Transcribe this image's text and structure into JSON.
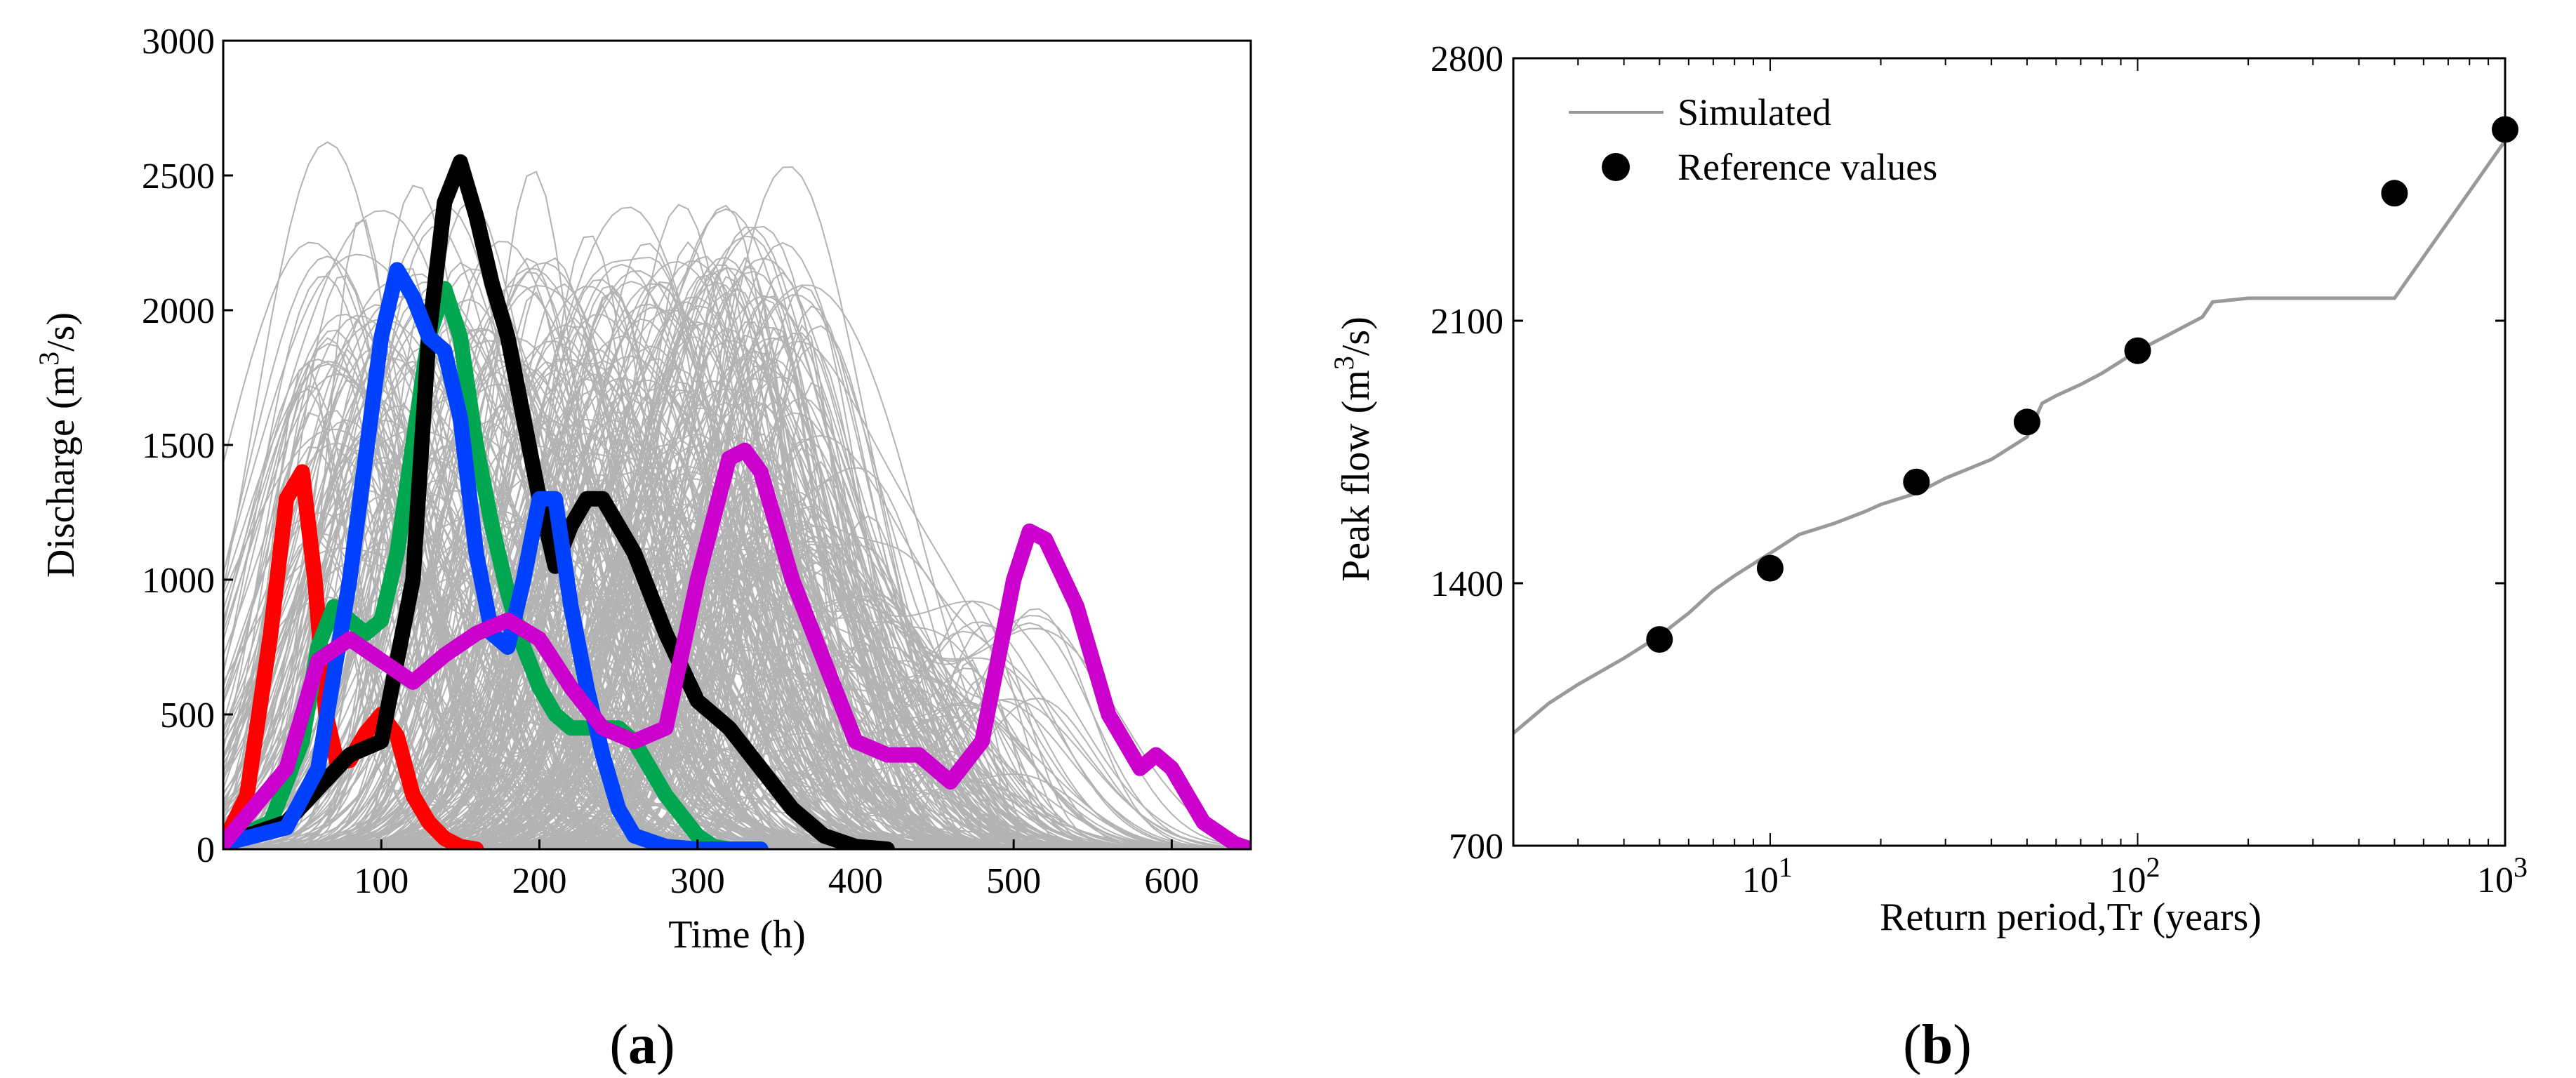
{
  "chart_data": [
    {
      "type": "line",
      "panel_label": "a",
      "xlabel": "Time (h)",
      "ylabel_parts": [
        "Discharge (m",
        "3",
        "/s)"
      ],
      "xlim": [
        0,
        650
      ],
      "ylim": [
        0,
        3000
      ],
      "xticks": [
        100,
        200,
        300,
        400,
        500,
        600
      ],
      "yticks": [
        0,
        500,
        1000,
        1500,
        2000,
        2500,
        3000
      ],
      "background_ensemble": {
        "color": "#b3b3b3",
        "description_shown": "many synthetic hydrographs, peaks mostly 1400-2200 m3/s between 50 and 350 h"
      },
      "series": [
        {
          "color": "#ff0000",
          "x": [
            0,
            15,
            30,
            40,
            50,
            58,
            65,
            72,
            80,
            90,
            100,
            110,
            120,
            130,
            140,
            150,
            160
          ],
          "y": [
            20,
            200,
            800,
            1300,
            1400,
            1000,
            500,
            320,
            330,
            430,
            500,
            420,
            200,
            100,
            40,
            10,
            0
          ]
        },
        {
          "color": "#00a650",
          "x": [
            0,
            30,
            50,
            60,
            70,
            80,
            90,
            100,
            110,
            120,
            130,
            140,
            150,
            160,
            170,
            180,
            190,
            200,
            210,
            220,
            230,
            250,
            260,
            270,
            280,
            300,
            310,
            320
          ],
          "y": [
            20,
            100,
            400,
            750,
            900,
            850,
            800,
            850,
            1100,
            1500,
            1900,
            2080,
            1900,
            1500,
            1200,
            950,
            750,
            600,
            500,
            450,
            450,
            450,
            400,
            300,
            200,
            50,
            10,
            0
          ]
        },
        {
          "color": "#000000",
          "x": [
            0,
            40,
            80,
            100,
            120,
            130,
            140,
            150,
            160,
            170,
            180,
            190,
            200,
            210,
            220,
            230,
            240,
            260,
            280,
            300,
            320,
            340,
            360,
            380,
            400,
            420
          ],
          "y": [
            20,
            100,
            350,
            400,
            1000,
            1900,
            2400,
            2550,
            2350,
            2100,
            1900,
            1600,
            1300,
            1050,
            1200,
            1300,
            1300,
            1100,
            800,
            550,
            450,
            300,
            150,
            50,
            10,
            0
          ]
        },
        {
          "color": "#0040ff",
          "x": [
            0,
            40,
            60,
            80,
            100,
            110,
            120,
            130,
            140,
            150,
            160,
            170,
            180,
            190,
            200,
            210,
            220,
            230,
            240,
            250,
            260,
            280,
            300,
            340
          ],
          "y": [
            20,
            80,
            300,
            1000,
            1900,
            2150,
            2050,
            1900,
            1850,
            1600,
            1100,
            800,
            750,
            1000,
            1300,
            1300,
            900,
            600,
            350,
            150,
            50,
            10,
            0,
            0
          ]
        },
        {
          "color": "#cc00cc",
          "x": [
            0,
            40,
            60,
            80,
            100,
            120,
            140,
            160,
            180,
            200,
            220,
            240,
            260,
            280,
            300,
            320,
            330,
            340,
            360,
            380,
            400,
            420,
            440,
            460,
            480,
            500,
            510,
            520,
            540,
            560,
            580,
            590,
            600,
            620,
            640,
            650
          ],
          "y": [
            20,
            300,
            700,
            780,
            700,
            620,
            720,
            800,
            850,
            780,
            600,
            450,
            400,
            450,
            1000,
            1450,
            1480,
            1400,
            1000,
            700,
            400,
            350,
            350,
            250,
            400,
            1000,
            1180,
            1150,
            900,
            500,
            300,
            350,
            300,
            100,
            20,
            0
          ]
        }
      ]
    },
    {
      "type": "line",
      "panel_label": "b",
      "xlabel": "Return period,Tr (years)",
      "ylabel_parts": [
        "Peak flow (m",
        "3",
        "/s)"
      ],
      "xscale": "log",
      "xlim": [
        2,
        1000
      ],
      "ylim": [
        700,
        2800
      ],
      "xtick_labels": [
        {
          "base": "10",
          "exp": "1",
          "value": 10
        },
        {
          "base": "10",
          "exp": "2",
          "value": 100
        },
        {
          "base": "10",
          "exp": "3",
          "value": 1000
        }
      ],
      "yticks": [
        700,
        1400,
        2100,
        2800
      ],
      "legend_position": "top-left",
      "series": [
        {
          "name": "Simulated",
          "color": "#999999",
          "x": [
            2,
            2.5,
            3,
            4,
            5,
            6,
            7,
            8,
            10,
            12,
            15,
            18,
            20,
            25,
            30,
            40,
            50,
            55,
            60,
            70,
            80,
            100,
            120,
            150,
            160,
            200,
            300,
            500,
            1000
          ],
          "y": [
            1000,
            1080,
            1130,
            1200,
            1260,
            1320,
            1380,
            1420,
            1480,
            1530,
            1560,
            1590,
            1610,
            1640,
            1680,
            1730,
            1790,
            1880,
            1900,
            1930,
            1960,
            2020,
            2060,
            2110,
            2150,
            2160,
            2160,
            2160,
            2580
          ]
        },
        {
          "name": "Reference values",
          "color": "#000000",
          "marker": "o",
          "x": [
            5,
            10,
            25,
            50,
            100,
            500,
            1000
          ],
          "y": [
            1250,
            1440,
            1670,
            1830,
            2020,
            2440,
            2610
          ]
        }
      ]
    }
  ]
}
